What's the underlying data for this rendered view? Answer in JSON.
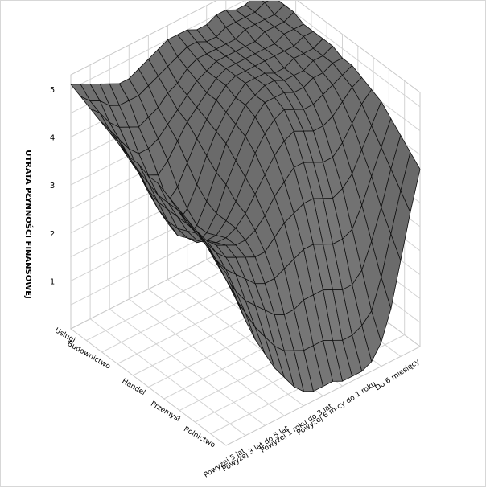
{
  "chart_data": {
    "type": "surface3d",
    "title": "",
    "zlabel": "UTRATA PŁYNNOŚCI FINANSOWEJ",
    "z_ticks": [
      "1",
      "2",
      "3",
      "4",
      "5"
    ],
    "x_tick_labels": [
      "Usługi",
      "Budownictwo",
      "Handel",
      "Przemysł",
      "Rolnictwo"
    ],
    "y_tick_labels": [
      "Powyżej 5 lat",
      "Powyżej 3 lat do 5 lat",
      "Powyżej 1 roku do 3 lat",
      "Powyżej 6 m-cy do 1 roku",
      "Do 6 miesięcy"
    ],
    "zlim": [
      0,
      5.3
    ],
    "grid": true,
    "surface_color": "#6b6b6b",
    "mesh_color": "#111111",
    "z_rows": [
      [
        5.1,
        5.0,
        4.9,
        4.8,
        4.7,
        4.6,
        4.6,
        4.7,
        4.8,
        4.9,
        5.0,
        5.0,
        5.0,
        4.9,
        4.9,
        5.0,
        5.0,
        4.9,
        4.9,
        5.0,
        5.0
      ],
      [
        5.0,
        4.8,
        4.7,
        4.5,
        4.4,
        4.4,
        4.4,
        4.5,
        4.6,
        4.7,
        4.8,
        4.9,
        4.9,
        4.8,
        4.8,
        4.9,
        4.9,
        4.9,
        4.9,
        5.0,
        5.0
      ],
      [
        4.9,
        4.7,
        4.4,
        4.2,
        4.1,
        4.0,
        4.1,
        4.2,
        4.4,
        4.5,
        4.7,
        4.8,
        4.8,
        4.8,
        4.8,
        4.8,
        4.9,
        4.9,
        4.9,
        4.9,
        5.0
      ],
      [
        4.8,
        4.5,
        4.2,
        3.9,
        3.7,
        3.7,
        3.8,
        4.0,
        4.2,
        4.4,
        4.6,
        4.7,
        4.8,
        4.8,
        4.8,
        4.8,
        4.8,
        4.9,
        4.9,
        4.9,
        5.0
      ],
      [
        4.7,
        4.4,
        4.0,
        3.6,
        3.4,
        3.3,
        3.5,
        3.8,
        4.1,
        4.3,
        4.5,
        4.7,
        4.8,
        4.8,
        4.8,
        4.8,
        4.8,
        4.8,
        4.9,
        4.9,
        4.9
      ],
      [
        4.6,
        4.2,
        3.8,
        3.3,
        3.0,
        2.9,
        3.1,
        3.5,
        3.9,
        4.2,
        4.5,
        4.7,
        4.8,
        4.8,
        4.8,
        4.8,
        4.8,
        4.8,
        4.8,
        4.9,
        4.9
      ],
      [
        4.5,
        4.1,
        3.6,
        3.1,
        2.7,
        2.6,
        2.8,
        3.2,
        3.7,
        4.1,
        4.4,
        4.6,
        4.8,
        4.8,
        4.8,
        4.7,
        4.7,
        4.8,
        4.8,
        4.8,
        4.9
      ],
      [
        4.5,
        4.0,
        3.5,
        3.0,
        2.6,
        2.5,
        2.6,
        3.0,
        3.5,
        4.0,
        4.3,
        4.6,
        4.7,
        4.8,
        4.8,
        4.7,
        4.7,
        4.7,
        4.8,
        4.8,
        4.9
      ],
      [
        4.4,
        3.9,
        3.5,
        3.0,
        2.7,
        2.5,
        2.6,
        2.9,
        3.4,
        3.8,
        4.2,
        4.5,
        4.7,
        4.7,
        4.7,
        4.6,
        4.6,
        4.7,
        4.7,
        4.8,
        4.8
      ],
      [
        4.4,
        3.9,
        3.5,
        3.1,
        2.8,
        2.7,
        2.7,
        2.9,
        3.2,
        3.6,
        4.0,
        4.3,
        4.5,
        4.6,
        4.5,
        4.4,
        4.4,
        4.5,
        4.6,
        4.7,
        4.8
      ],
      [
        4.3,
        3.9,
        3.5,
        3.2,
        2.9,
        2.8,
        2.8,
        2.9,
        3.1,
        3.4,
        3.7,
        4.0,
        4.2,
        4.3,
        4.2,
        4.1,
        4.1,
        4.2,
        4.4,
        4.6,
        4.7
      ],
      [
        4.2,
        3.8,
        3.5,
        3.2,
        3.0,
        2.9,
        2.8,
        2.8,
        2.9,
        3.1,
        3.4,
        3.6,
        3.8,
        3.8,
        3.7,
        3.6,
        3.6,
        3.8,
        4.1,
        4.4,
        4.6
      ],
      [
        4.1,
        3.7,
        3.4,
        3.1,
        2.9,
        2.8,
        2.7,
        2.6,
        2.6,
        2.8,
        3.0,
        3.1,
        3.2,
        3.2,
        3.1,
        3.0,
        3.1,
        3.3,
        3.7,
        4.1,
        4.5
      ],
      [
        4.0,
        3.6,
        3.2,
        2.9,
        2.7,
        2.5,
        2.3,
        2.2,
        2.2,
        2.3,
        2.4,
        2.5,
        2.5,
        2.4,
        2.3,
        2.3,
        2.4,
        2.8,
        3.3,
        3.8,
        4.3
      ],
      [
        3.9,
        3.4,
        3.0,
        2.6,
        2.3,
        2.1,
        1.9,
        1.7,
        1.6,
        1.6,
        1.7,
        1.7,
        1.7,
        1.6,
        1.5,
        1.5,
        1.7,
        2.2,
        2.8,
        3.5,
        4.1
      ],
      [
        3.7,
        3.2,
        2.7,
        2.3,
        1.9,
        1.6,
        1.3,
        1.1,
        1.0,
        0.9,
        0.9,
        0.9,
        0.8,
        0.7,
        0.7,
        0.8,
        1.0,
        1.6,
        2.4,
        3.2,
        3.9
      ],
      [
        3.6,
        3.0,
        2.4,
        1.9,
        1.5,
        1.1,
        0.8,
        0.5,
        0.3,
        0.2,
        0.2,
        0.2,
        0.1,
        0.1,
        0.1,
        0.2,
        0.5,
        1.1,
        2.0,
        2.9,
        3.7
      ]
    ]
  }
}
